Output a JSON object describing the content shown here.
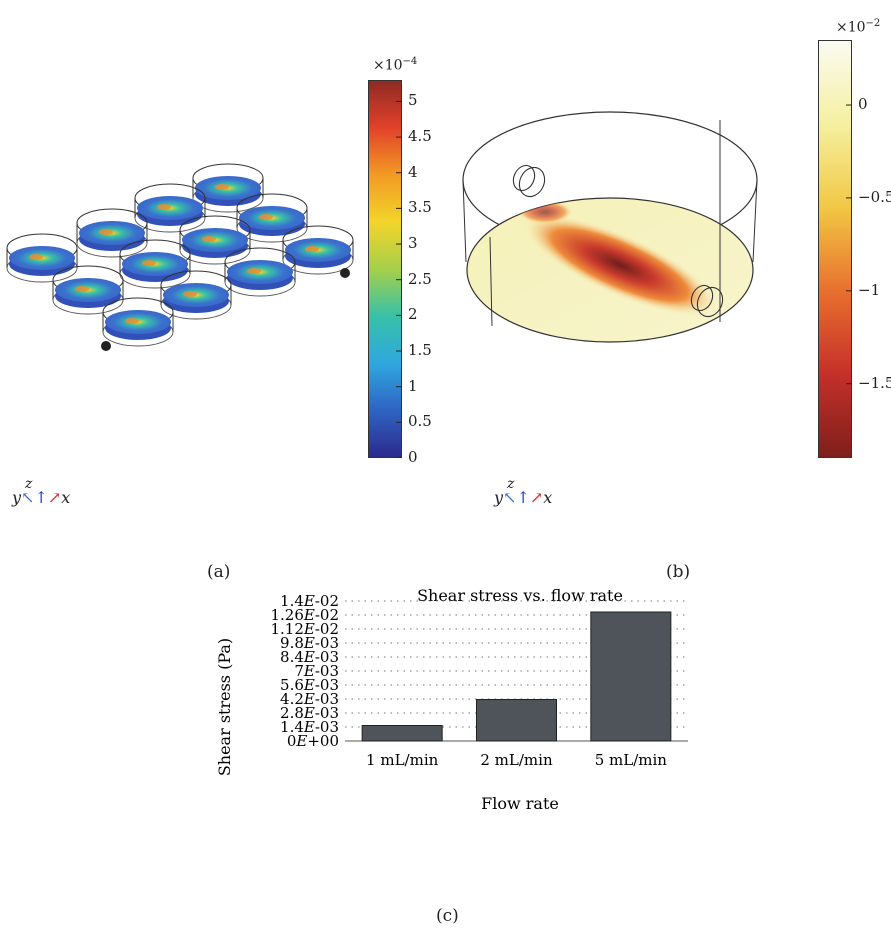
{
  "panels": {
    "a": {
      "label": "(a)",
      "axes_triad": {
        "y": "y",
        "z": "z",
        "x": "x"
      },
      "colorbar": {
        "exponent_base": "×10",
        "exponent_power": "−4",
        "ticks": [
          {
            "value": 0,
            "label": "0"
          },
          {
            "value": 0.5,
            "label": "0.5"
          },
          {
            "value": 1,
            "label": "1"
          },
          {
            "value": 1.5,
            "label": "1.5"
          },
          {
            "value": 2,
            "label": "2"
          },
          {
            "value": 2.5,
            "label": "2.5"
          },
          {
            "value": 3,
            "label": "3"
          },
          {
            "value": 3.5,
            "label": "3.5"
          },
          {
            "value": 4,
            "label": "4"
          },
          {
            "value": 4.5,
            "label": "4.5"
          },
          {
            "value": 5,
            "label": "5"
          }
        ],
        "range": [
          0,
          5.3
        ],
        "colors": [
          "#2b2a8c",
          "#2f63c2",
          "#2fa7de",
          "#38c1a8",
          "#a5d04a",
          "#f3d42a",
          "#f29a24",
          "#e2412a",
          "#8e2a23"
        ]
      }
    },
    "b": {
      "label": "(b)",
      "axes_triad": {
        "y": "y",
        "z": "z",
        "x": "x"
      },
      "colorbar": {
        "exponent_base": "×10",
        "exponent_power": "−2",
        "ticks": [
          {
            "value": 0,
            "label": "0"
          },
          {
            "value": -0.5,
            "label": "−0.5"
          },
          {
            "value": -1,
            "label": "−1"
          },
          {
            "value": -1.5,
            "label": "−1.5"
          }
        ],
        "range": [
          -1.9,
          0.35
        ],
        "colors": [
          "#7e1f1b",
          "#c5302a",
          "#e8702e",
          "#f2c845",
          "#f5f0a0",
          "#fbfbf2"
        ]
      }
    },
    "c": {
      "label": "(c)"
    }
  },
  "chart_data": {
    "type": "bar",
    "title": "Shear stress vs. flow rate",
    "xlabel": "Flow rate",
    "ylabel": "Shear stress (Pa)",
    "categories": [
      "1 mL/min",
      "2 mL/min",
      "5 mL/min"
    ],
    "values": [
      0.00155,
      0.00415,
      0.0129
    ],
    "ylim": [
      0,
      0.014
    ],
    "yticks": [
      0,
      0.0014,
      0.0028,
      0.0042,
      0.0056,
      0.007,
      0.0084,
      0.0098,
      0.0112,
      0.0126,
      0.014
    ],
    "ytick_labels": [
      [
        "0",
        "E+00"
      ],
      [
        "1.4",
        "E-03"
      ],
      [
        "2.8",
        "E-03"
      ],
      [
        "4.2",
        "E-03"
      ],
      [
        "5.6",
        "E-03"
      ],
      [
        "7",
        "E-03"
      ],
      [
        "8.4",
        "E-03"
      ],
      [
        "9.8",
        "E-03"
      ],
      [
        "1.12",
        "E-02"
      ],
      [
        "1.26",
        "E-02"
      ],
      [
        "1.4",
        "E-02"
      ]
    ],
    "grid": true,
    "bar_color": "#4f545b"
  }
}
